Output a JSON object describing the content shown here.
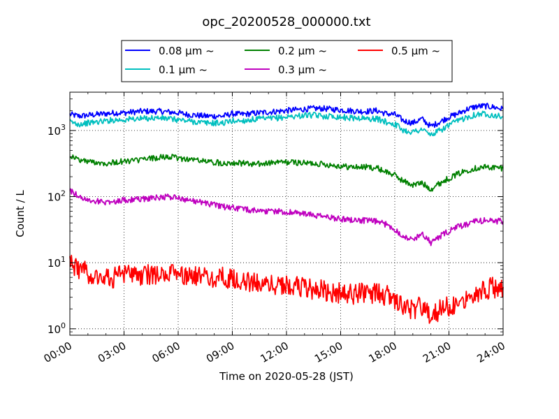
{
  "chart_data": {
    "type": "line",
    "title": "opc_20200528_000000.txt",
    "xlabel": "Time on 2020-05-28 (JST)",
    "ylabel": "Count / L",
    "yscale": "log",
    "ylim": [
      0.8,
      3800
    ],
    "xlim": [
      "00:00",
      "24:00"
    ],
    "grid": true,
    "legend_position": "top-center",
    "x_tick_labels": [
      "00:00",
      "03:00",
      "06:00",
      "09:00",
      "12:00",
      "15:00",
      "18:00",
      "21:00",
      "24:00"
    ],
    "y_tick_labels": [
      {
        "base": "10",
        "exp": "0"
      },
      {
        "base": "10",
        "exp": "1"
      },
      {
        "base": "10",
        "exp": "2"
      },
      {
        "base": "10",
        "exp": "3"
      }
    ],
    "x_hours": [
      0,
      0.5,
      1,
      1.5,
      2,
      2.5,
      3,
      3.5,
      4,
      4.5,
      5,
      5.5,
      6,
      6.5,
      7,
      7.5,
      8,
      8.5,
      9,
      9.5,
      10,
      10.5,
      11,
      11.5,
      12,
      12.5,
      13,
      13.5,
      14,
      14.5,
      15,
      15.5,
      16,
      16.5,
      17,
      17.5,
      18,
      18.5,
      19,
      19.5,
      20,
      20.5,
      21,
      21.5,
      22,
      22.5,
      23,
      23.5,
      24
    ],
    "series": [
      {
        "name": "0.08 μm ~",
        "color": "#0000ff",
        "values": [
          1750,
          1650,
          1700,
          1750,
          1800,
          1850,
          1850,
          1900,
          1950,
          1950,
          1950,
          1900,
          1850,
          1750,
          1700,
          1650,
          1650,
          1650,
          1800,
          1750,
          1800,
          1850,
          1900,
          1950,
          2000,
          2050,
          2100,
          2150,
          2150,
          2100,
          2050,
          2000,
          1950,
          1950,
          2000,
          1800,
          1750,
          1400,
          1300,
          1500,
          1150,
          1350,
          1600,
          1800,
          2100,
          2300,
          2350,
          2250,
          2100
        ]
      },
      {
        "name": "0.1 μm ~",
        "color": "#00bfbf",
        "values": [
          1350,
          1250,
          1300,
          1350,
          1400,
          1450,
          1450,
          1500,
          1500,
          1550,
          1550,
          1500,
          1450,
          1400,
          1350,
          1300,
          1300,
          1300,
          1400,
          1400,
          1450,
          1500,
          1500,
          1550,
          1600,
          1650,
          1700,
          1700,
          1650,
          1650,
          1600,
          1550,
          1550,
          1500,
          1500,
          1350,
          1250,
          1000,
          950,
          1050,
          850,
          1000,
          1200,
          1400,
          1600,
          1750,
          1800,
          1700,
          1600
        ]
      },
      {
        "name": "0.2 μm ~",
        "color": "#008000",
        "values": [
          420,
          360,
          340,
          330,
          320,
          330,
          340,
          350,
          360,
          380,
          390,
          400,
          380,
          370,
          360,
          340,
          330,
          320,
          330,
          320,
          310,
          310,
          320,
          330,
          330,
          330,
          320,
          320,
          310,
          300,
          290,
          280,
          280,
          280,
          270,
          240,
          210,
          170,
          150,
          160,
          130,
          160,
          190,
          220,
          250,
          270,
          280,
          275,
          270
        ]
      },
      {
        "name": "0.3 μm ~",
        "color": "#bf00bf",
        "values": [
          125,
          100,
          88,
          85,
          82,
          85,
          88,
          90,
          92,
          95,
          97,
          100,
          95,
          90,
          85,
          80,
          75,
          70,
          68,
          65,
          62,
          62,
          60,
          60,
          58,
          57,
          55,
          52,
          50,
          48,
          46,
          45,
          44,
          43,
          42,
          38,
          32,
          25,
          22,
          28,
          20,
          25,
          30,
          35,
          38,
          42,
          44,
          43,
          42
        ]
      },
      {
        "name": "0.5 μm ~",
        "color": "#ff0000",
        "values": [
          10.5,
          8,
          7,
          6.5,
          6,
          6,
          6.5,
          6.5,
          6.5,
          6.5,
          6.5,
          6.5,
          6.5,
          6.5,
          6,
          6,
          6,
          6,
          5.5,
          5.2,
          5,
          4.9,
          4.8,
          4.7,
          4.6,
          4.4,
          4.2,
          4,
          3.8,
          3.6,
          3.5,
          3.4,
          3.4,
          3.4,
          3.4,
          3.2,
          2.8,
          2.2,
          1.9,
          2.2,
          1.6,
          1.9,
          2.2,
          2.6,
          3.1,
          3.6,
          4,
          4.2,
          4.3
        ]
      }
    ]
  }
}
